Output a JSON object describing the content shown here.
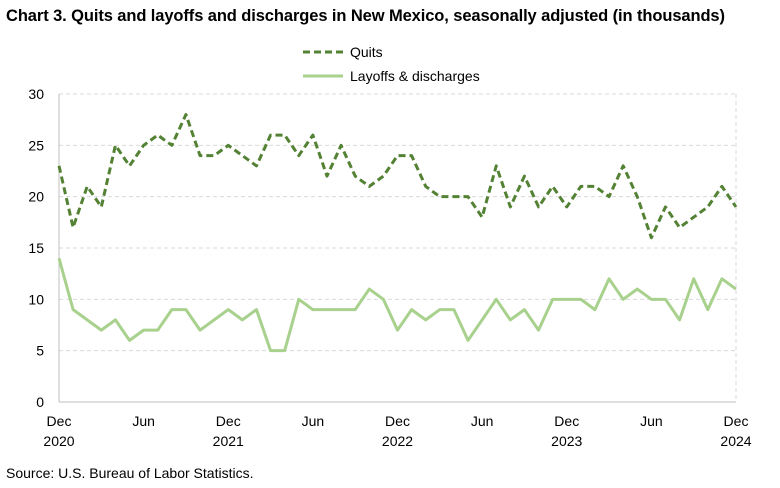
{
  "title": "Chart 3. Quits and layoffs and discharges in New Mexico, seasonally adjusted (in thousands)",
  "source": "Source: U.S. Bureau of Labor Statistics.",
  "chart_data": {
    "type": "line",
    "title": "Chart 3. Quits and layoffs and discharges in New Mexico, seasonally adjusted (in thousands)",
    "xlabel": "",
    "ylabel": "",
    "ylim": [
      0,
      30
    ],
    "yticks": [
      0,
      5,
      10,
      15,
      20,
      25,
      30
    ],
    "grid": "horizontal dashed",
    "legend": "top-center",
    "x": [
      "Dec 2020",
      "Jan 2021",
      "Feb 2021",
      "Mar 2021",
      "Apr 2021",
      "May 2021",
      "Jun 2021",
      "Jul 2021",
      "Aug 2021",
      "Sep 2021",
      "Oct 2021",
      "Nov 2021",
      "Dec 2021",
      "Jan 2022",
      "Feb 2022",
      "Mar 2022",
      "Apr 2022",
      "May 2022",
      "Jun 2022",
      "Jul 2022",
      "Aug 2022",
      "Sep 2022",
      "Oct 2022",
      "Nov 2022",
      "Dec 2022",
      "Jan 2023",
      "Feb 2023",
      "Mar 2023",
      "Apr 2023",
      "May 2023",
      "Jun 2023",
      "Jul 2023",
      "Aug 2023",
      "Sep 2023",
      "Oct 2023",
      "Nov 2023",
      "Dec 2023",
      "Jan 2024",
      "Feb 2024",
      "Mar 2024",
      "Apr 2024",
      "May 2024",
      "Jun 2024",
      "Jul 2024",
      "Aug 2024",
      "Sep 2024",
      "Oct 2024",
      "Nov 2024",
      "Dec 2024"
    ],
    "xtick_labels": [
      {
        "index": 0,
        "month": "Dec",
        "year": "2020"
      },
      {
        "index": 6,
        "month": "Jun",
        "year": ""
      },
      {
        "index": 12,
        "month": "Dec",
        "year": "2021"
      },
      {
        "index": 18,
        "month": "Jun",
        "year": ""
      },
      {
        "index": 24,
        "month": "Dec",
        "year": "2022"
      },
      {
        "index": 30,
        "month": "Jun",
        "year": ""
      },
      {
        "index": 36,
        "month": "Dec",
        "year": "2023"
      },
      {
        "index": 42,
        "month": "Jun",
        "year": ""
      },
      {
        "index": 48,
        "month": "Dec",
        "year": "2024"
      }
    ],
    "series": [
      {
        "name": "Quits",
        "color": "#548235",
        "style": "dashed",
        "values": [
          23,
          17,
          21,
          19,
          25,
          23,
          25,
          26,
          25,
          28,
          24,
          24,
          25,
          24,
          23,
          26,
          26,
          24,
          26,
          22,
          25,
          22,
          21,
          22,
          24,
          24,
          21,
          20,
          20,
          20,
          18,
          23,
          19,
          22,
          19,
          21,
          19,
          21,
          21,
          20,
          23,
          20,
          16,
          19,
          17,
          18,
          19,
          21,
          19
        ]
      },
      {
        "name": "Layoffs & discharges",
        "color": "#a9d18e",
        "style": "solid",
        "values": [
          14,
          9,
          8,
          7,
          8,
          6,
          7,
          7,
          9,
          9,
          7,
          8,
          9,
          8,
          9,
          5,
          5,
          10,
          9,
          9,
          9,
          9,
          11,
          10,
          7,
          9,
          8,
          9,
          9,
          6,
          8,
          10,
          8,
          9,
          7,
          10,
          10,
          10,
          9,
          12,
          10,
          11,
          10,
          10,
          8,
          12,
          9,
          12,
          11
        ]
      }
    ]
  }
}
